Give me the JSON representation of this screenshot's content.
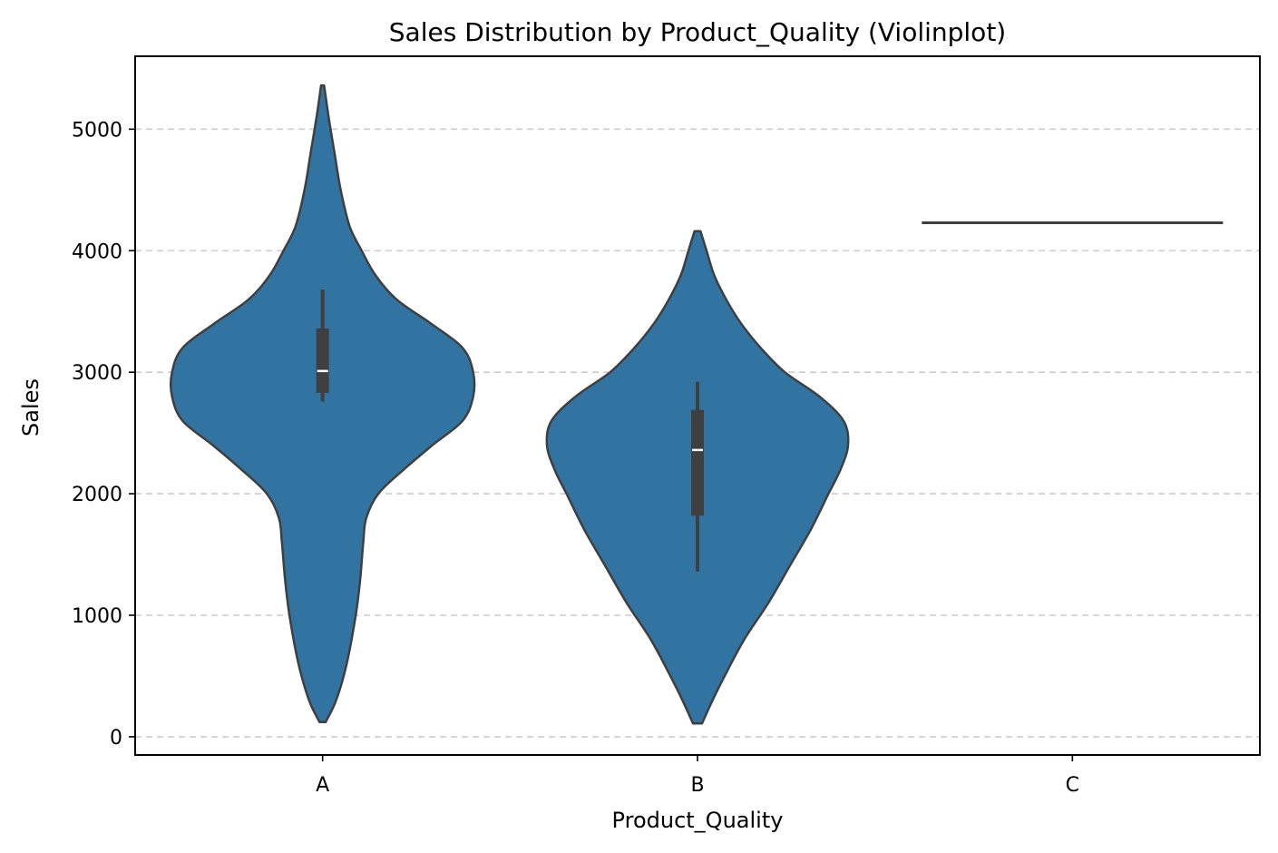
{
  "chart_data": {
    "type": "violin",
    "title": "Sales Distribution by Product_Quality (Violinplot)",
    "xlabel": "Product_Quality",
    "ylabel": "Sales",
    "categories": [
      "A",
      "B",
      "C"
    ],
    "ylim": [
      -150,
      5600
    ],
    "yticks": [
      0,
      1000,
      2000,
      3000,
      4000,
      5000
    ],
    "grid": "y-dashed",
    "colors": {
      "fill": "#3274a1",
      "edge": "#3f3f3f",
      "grid": "#cccccc",
      "median": "#ffffff"
    },
    "violins": [
      {
        "category": "A",
        "min": 120,
        "max": 5360,
        "q1": 2830,
        "median": 3010,
        "q3": 3360,
        "whisker_low": 2760,
        "whisker_high": 3680,
        "profile": [
          [
            120,
            0.02
          ],
          [
            300,
            0.09
          ],
          [
            600,
            0.16
          ],
          [
            1000,
            0.22
          ],
          [
            1300,
            0.25
          ],
          [
            1600,
            0.27
          ],
          [
            1800,
            0.29
          ],
          [
            2000,
            0.37
          ],
          [
            2200,
            0.54
          ],
          [
            2400,
            0.73
          ],
          [
            2600,
            0.93
          ],
          [
            2800,
            1.0
          ],
          [
            3000,
            1.0
          ],
          [
            3200,
            0.93
          ],
          [
            3400,
            0.72
          ],
          [
            3600,
            0.49
          ],
          [
            3800,
            0.35
          ],
          [
            4000,
            0.26
          ],
          [
            4200,
            0.18
          ],
          [
            4500,
            0.12
          ],
          [
            4800,
            0.08
          ],
          [
            5100,
            0.04
          ],
          [
            5360,
            0.01
          ]
        ]
      },
      {
        "category": "B",
        "min": 110,
        "max": 4160,
        "q1": 1820,
        "median": 2360,
        "q3": 2690,
        "whisker_low": 1360,
        "whisker_high": 2920,
        "profile": [
          [
            110,
            0.03
          ],
          [
            300,
            0.1
          ],
          [
            500,
            0.18
          ],
          [
            800,
            0.31
          ],
          [
            1100,
            0.47
          ],
          [
            1400,
            0.61
          ],
          [
            1700,
            0.75
          ],
          [
            2000,
            0.87
          ],
          [
            2200,
            0.95
          ],
          [
            2400,
            1.0
          ],
          [
            2600,
            0.97
          ],
          [
            2800,
            0.81
          ],
          [
            3000,
            0.58
          ],
          [
            3200,
            0.42
          ],
          [
            3400,
            0.29
          ],
          [
            3600,
            0.19
          ],
          [
            3800,
            0.11
          ],
          [
            4000,
            0.06
          ],
          [
            4160,
            0.02
          ]
        ]
      },
      {
        "category": "C",
        "single_value": 4230
      }
    ]
  }
}
